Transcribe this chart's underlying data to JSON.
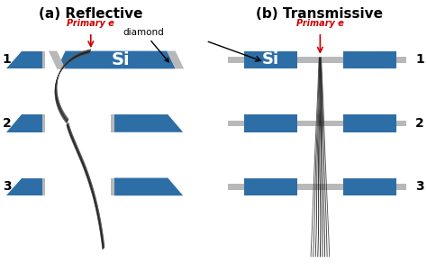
{
  "title_a": "(a) Reflective",
  "title_b": "(b) Transmissive",
  "title_fontsize": 11,
  "bg_color": "#ffffff",
  "blue_color": "#2E6EA6",
  "gray_color": "#B8B8B8",
  "si_text_color": "#ffffff",
  "label_color": "#000000",
  "red_color": "#cc0000",
  "primary_label": "Primary e",
  "superscript": "⁻",
  "diamond_label": "diamond",
  "si_label": "Si",
  "row_labels": [
    "1",
    "2",
    "3"
  ],
  "fig_width": 4.74,
  "fig_height": 3.02,
  "dpi": 100
}
